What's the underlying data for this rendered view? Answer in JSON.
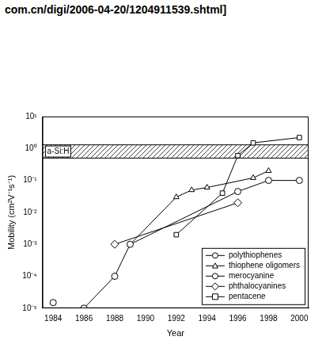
{
  "chart_data": {
    "type": "line",
    "annotations": [
      "com.cn/digi/2006-04-20/1204911539.shtml]"
    ],
    "x_label": "Year",
    "y_label": "Mobility (cm²V⁻¹s⁻¹)",
    "xlim": [
      1983.3,
      2000.6
    ],
    "xticks": [
      1984,
      1986,
      1988,
      1990,
      1992,
      1994,
      1996,
      1998,
      2000
    ],
    "ylim": [
      1e-05,
      10
    ],
    "yticks": [
      {
        "value": 1e-05,
        "label": "10⁻⁵"
      },
      {
        "value": 0.0001,
        "label": "10⁻⁴"
      },
      {
        "value": 0.001,
        "label": "10⁻³"
      },
      {
        "value": 0.01,
        "label": "10⁻²"
      },
      {
        "value": 0.1,
        "label": "10⁻¹"
      },
      {
        "value": 1,
        "label": "10⁰"
      },
      {
        "value": 10,
        "label": "10¹"
      }
    ],
    "log": "y",
    "grid": false,
    "legend": "bottom-right",
    "band": {
      "label": "a-Si:H",
      "range": [
        0.5,
        1.3
      ]
    },
    "series": [
      {
        "name": "polythiophenes",
        "color": "#000000",
        "marker": "circle",
        "line_style": "solid",
        "x": [
          1986,
          1988,
          1989,
          1996,
          1998,
          2000
        ],
        "values": [
          1e-05,
          0.0001,
          0.001,
          0.045,
          0.1,
          0.1
        ]
      },
      {
        "name": "thiophene oligomers",
        "color": "#000000",
        "marker": "triangle",
        "line_style": "solid",
        "x": [
          1989,
          1992,
          1993,
          1994,
          1997,
          1998
        ],
        "values": [
          0.001,
          0.03,
          0.05,
          0.06,
          0.12,
          0.2
        ]
      },
      {
        "name": "merocyanine",
        "color": "#000000",
        "marker": "circle",
        "line_style": "solid",
        "x": [
          1984
        ],
        "values": [
          1.5e-05
        ]
      },
      {
        "name": "phthalocyanines",
        "color": "#000000",
        "marker": "diamond",
        "line_style": "solid",
        "x": [
          1988,
          1996
        ],
        "values": [
          0.001,
          0.02
        ]
      },
      {
        "name": "pentacene",
        "color": "#000000",
        "marker": "square",
        "line_style": "solid",
        "x": [
          1992,
          1995,
          1996,
          1997,
          2000
        ],
        "values": [
          0.002,
          0.04,
          0.6,
          1.5,
          2.2
        ]
      }
    ]
  }
}
